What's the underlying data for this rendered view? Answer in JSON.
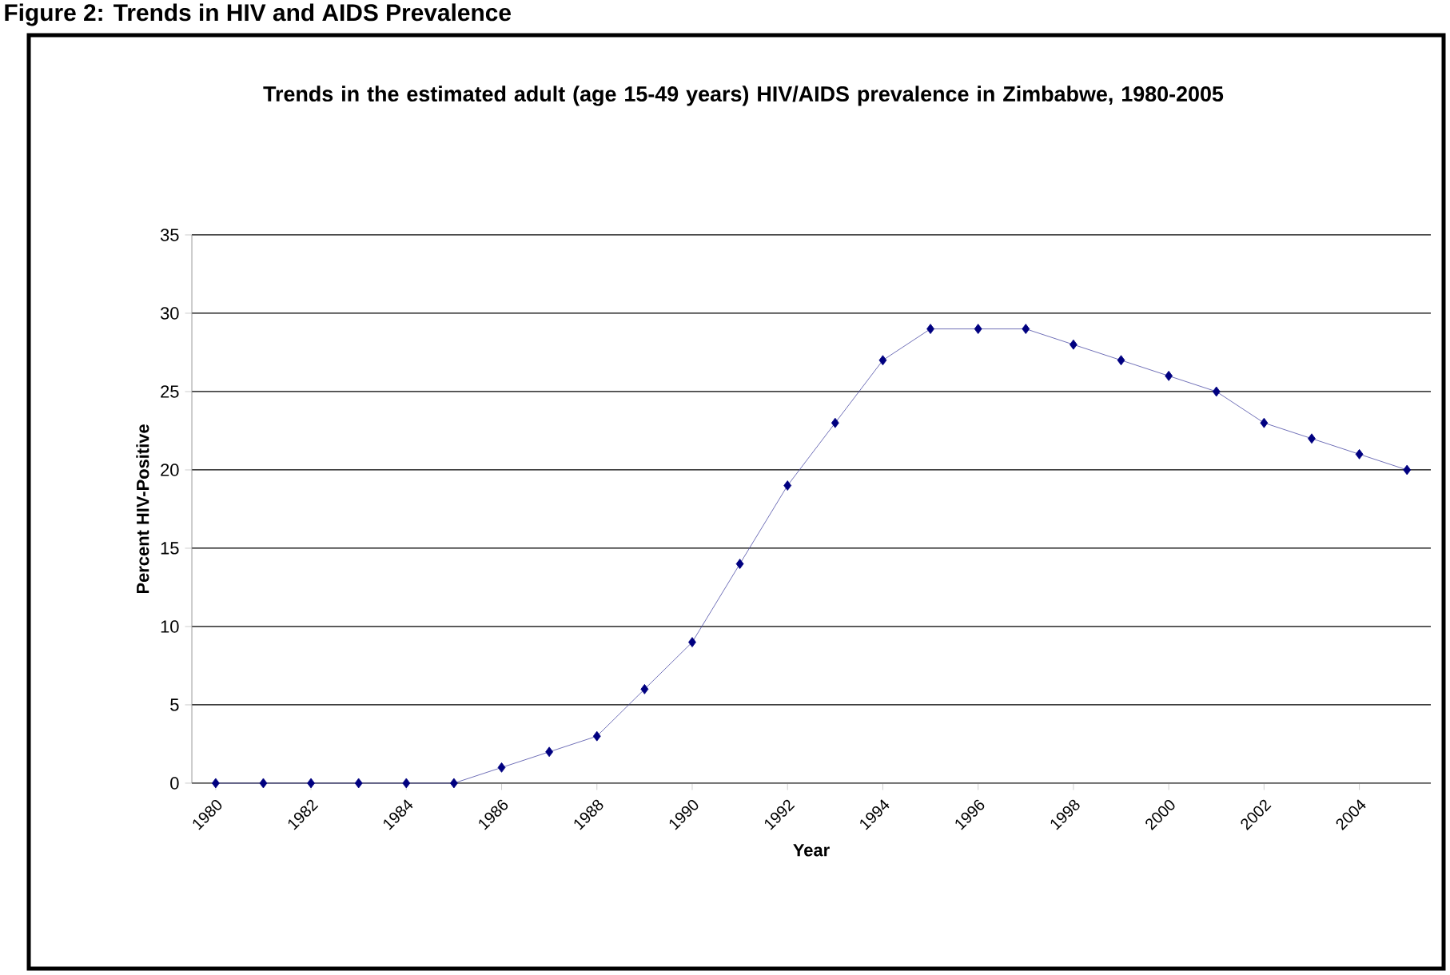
{
  "chart_data": {
    "type": "line",
    "title": "Trends in the estimated adult (age 15-49 years) HIV/AIDS prevalence in Zimbabwe, 1980-2005",
    "annotations": [
      "Figure 2: Trends in HIV and AIDS Prevalence"
    ],
    "xlabel": "Year",
    "ylabel": "Percent HIV-Positive",
    "categories": [
      "1980",
      null,
      "1982",
      null,
      "1984",
      null,
      "1986",
      null,
      "1988",
      null,
      "1990",
      null,
      "1992",
      null,
      "1994",
      null,
      "1996",
      null,
      "1998",
      null,
      "2000",
      null,
      "2002",
      null,
      "2004",
      null
    ],
    "series": [
      {
        "color": "#000080",
        "values": [
          0,
          0,
          0,
          0,
          0,
          0,
          1,
          2,
          3,
          6,
          9,
          14,
          19,
          23,
          27,
          29,
          29,
          29,
          28,
          27,
          26,
          25,
          23,
          22,
          21,
          20
        ]
      }
    ],
    "ylim": [
      0,
      35
    ],
    "yticks": [
      0,
      5,
      10,
      15,
      20,
      25,
      30,
      35
    ],
    "grid": "y",
    "marker": "diamond",
    "line_style": "solid"
  }
}
